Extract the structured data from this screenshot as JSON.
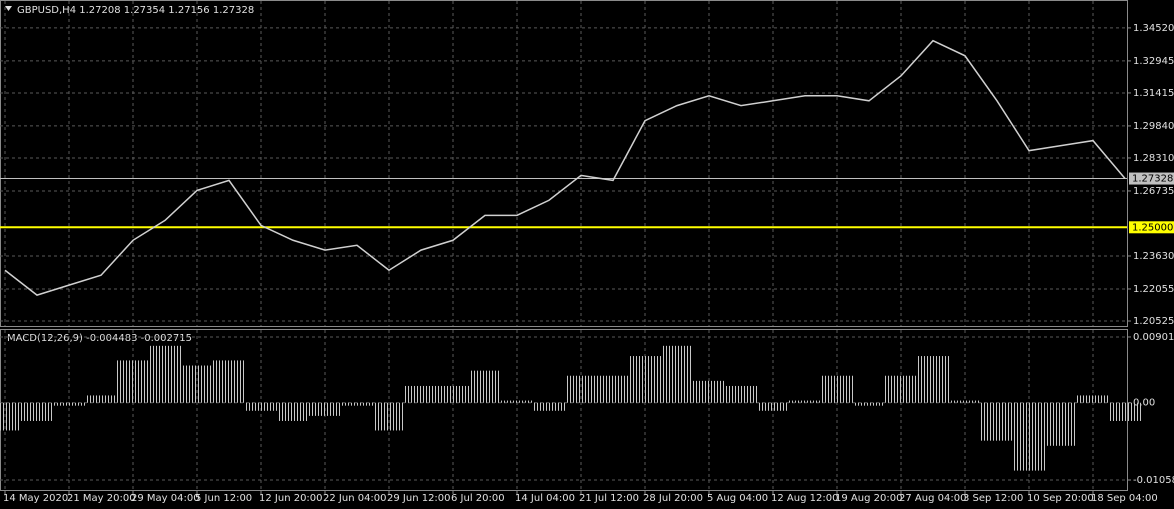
{
  "chart_data": [
    {
      "type": "line",
      "title": "GBPUSD,H4  1.27208 1.27354 1.27156 1.27328",
      "categories": [
        "14 May 2020",
        null,
        "21 May 20:00",
        null,
        "29 May 04:00",
        null,
        "5 Jun 12:00",
        null,
        "12 Jun 20:00",
        null,
        "22 Jun 04:00",
        null,
        "29 Jun 12:00",
        null,
        "6 Jul 20:00",
        null,
        "14 Jul 04:00",
        null,
        "21 Jul 12:00",
        null,
        "28 Jul 20:00",
        null,
        "5 Aug 04:00",
        null,
        "12 Aug 12:00",
        null,
        "19 Aug 20:00",
        null,
        "27 Aug 04:00",
        null,
        "3 Sep 12:00",
        null,
        "10 Sep 20:00",
        null,
        "18 Sep 04:00",
        null
      ],
      "values": [
        1.2295,
        1.2176,
        1.2224,
        1.2271,
        1.2438,
        1.2533,
        1.2676,
        1.2724,
        1.2509,
        1.2438,
        1.2391,
        1.2414,
        1.2295,
        1.2391,
        1.2438,
        1.2557,
        1.2557,
        1.2629,
        1.2748,
        1.2724,
        1.3009,
        1.3081,
        1.3128,
        1.3081,
        1.3104,
        1.3128,
        1.3128,
        1.3104,
        1.3223,
        1.3391,
        1.3319,
        1.3104,
        1.2866,
        1.289,
        1.2914,
        1.27328
      ],
      "color": "#d0d0d0",
      "ylim": [
        1.20287,
        1.35805
      ],
      "yticks": [
        {
          "value": 1.3452,
          "label": "1.34520"
        },
        {
          "value": 1.32945,
          "label": "1.32945"
        },
        {
          "value": 1.31415,
          "label": "1.31415"
        },
        {
          "value": 1.2984,
          "label": "1.29840"
        },
        {
          "value": 1.2831,
          "label": "1.28310"
        },
        {
          "value": 1.26735,
          "label": "1.26735"
        },
        {
          "value": 1.2363,
          "label": "1.23630"
        },
        {
          "value": 1.22055,
          "label": "1.22055"
        },
        {
          "value": 1.20525,
          "label": "1.20525"
        }
      ],
      "markers": [
        {
          "value": 1.25,
          "label": "1.25000",
          "color": "#ffff00"
        },
        {
          "value": 1.27328,
          "label": "1.27328",
          "color": "#c0c0c0"
        }
      ],
      "grid": true
    },
    {
      "type": "bar",
      "title": "MACD(12,26,9) -0.004483 -0.002715",
      "values": [
        -0.0038,
        -0.0025,
        -0.0004,
        0.001,
        0.0058,
        0.0078,
        0.0051,
        0.0058,
        -0.0011,
        -0.0025,
        -0.0018,
        -0.0004,
        -0.0038,
        0.0023,
        0.0023,
        0.0044,
        0.0003,
        -0.0011,
        0.0037,
        0.0037,
        0.0064,
        0.0078,
        0.003,
        0.0023,
        -0.0011,
        0.0003,
        0.0037,
        -0.0004,
        0.0037,
        0.0064,
        0.0003,
        -0.0052,
        -0.0093,
        -0.0059,
        0.001,
        -0.0025
      ],
      "color": "#c0c0c0",
      "ylim": [
        -0.01196,
        0.00997
      ],
      "yticks": [
        0.009014,
        {
          "value": 0,
          "label": "0.00"
        },
        -0.010589
      ],
      "grid": true
    }
  ]
}
